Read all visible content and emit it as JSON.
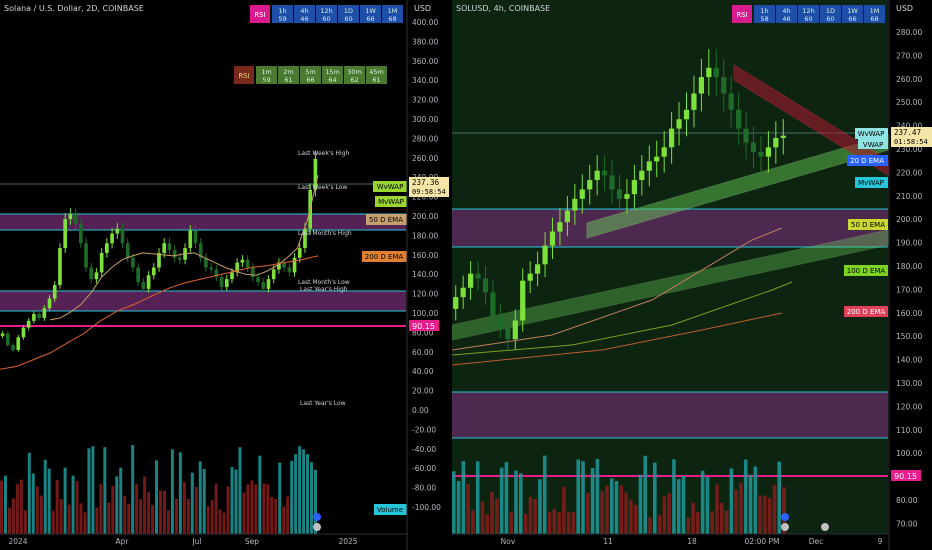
{
  "left": {
    "title": "Solana / U.S. Dollar, 2D, COINBASE",
    "currency": "USD",
    "rsi_label": "RSI",
    "timeframes": [
      {
        "tf": "1h",
        "val": "59"
      },
      {
        "tf": "4h",
        "val": "46"
      },
      {
        "tf": "12h",
        "val": "60"
      },
      {
        "tf": "1D",
        "val": "60"
      },
      {
        "tf": "1W",
        "val": "66"
      },
      {
        "tf": "1M",
        "val": "68"
      }
    ],
    "timeframes2": [
      {
        "tf": "1m",
        "val": "59"
      },
      {
        "tf": "2m",
        "val": "61"
      },
      {
        "tf": "5m",
        "val": "66"
      },
      {
        "tf": "15m",
        "val": "64"
      },
      {
        "tf": "30m",
        "val": "62"
      },
      {
        "tf": "45m",
        "val": "61"
      }
    ],
    "price_ticks": [
      "400.00",
      "380.00",
      "360.00",
      "340.00",
      "320.00",
      "300.00",
      "280.00",
      "260.00",
      "240.00",
      "220.00",
      "200.00",
      "180.00",
      "160.00",
      "140.00",
      "120.00",
      "100.00",
      "80.00",
      "60.00",
      "40.00",
      "20.00",
      "0.00",
      "-20.00",
      "-40.00",
      "-60.00",
      "-80.00",
      "-100.00"
    ],
    "x_ticks": [
      "2024",
      "Apr",
      "Jul",
      "Sep",
      "2025"
    ],
    "levels": {
      "last_week_high": "Last Week's High",
      "last_week_low": "Last Week's Low",
      "last_month_high": "Last Month's High",
      "last_month_low": "Last Month's Low",
      "last_year_high": "Last Year's High",
      "last_year_low": "Last Year's Low"
    },
    "badges": {
      "wvwap": "WvWAP",
      "mvwap": "MvWAP",
      "ema50": "50 D EMA",
      "ema200": "200 D EMA",
      "price": "237.36",
      "countdown": "09:58:54",
      "line_level": "90.15",
      "volume": "Volume"
    },
    "chart_data": {
      "type": "candlestick",
      "title": "Solana / U.S. Dollar, 2D, COINBASE",
      "ylim": [
        -110,
        410
      ],
      "closes": [
        82,
        70,
        65,
        78,
        88,
        95,
        102,
        98,
        108,
        118,
        132,
        170,
        200,
        205,
        195,
        175,
        150,
        138,
        145,
        165,
        175,
        185,
        190,
        175,
        160,
        150,
        135,
        128,
        142,
        150,
        165,
        175,
        168,
        160,
        158,
        170,
        188,
        175,
        160,
        150,
        148,
        140,
        130,
        138,
        145,
        155,
        158,
        150,
        140,
        135,
        128,
        138,
        148,
        155,
        150,
        145,
        160,
        170,
        190,
        230,
        262
      ],
      "ema50": [
        96,
        98,
        104,
        112,
        124,
        140,
        150,
        158,
        162,
        165,
        164,
        163,
        162,
        164,
        165,
        160,
        155,
        150,
        146,
        143,
        142,
        146,
        152,
        160,
        170,
        200,
        245
      ],
      "ema200": [
        45,
        48,
        55,
        62,
        72,
        82,
        95,
        105,
        112,
        120,
        128,
        134,
        138,
        142,
        146,
        150,
        152,
        155,
        158,
        162
      ],
      "vwap_lines": {
        "wvwap": 237.36,
        "mvwap": 215
      },
      "zones": [
        [
          185,
          205
        ],
        [
          108,
          125
        ]
      ],
      "line_level": 90.15
    }
  },
  "right": {
    "title": "SOLUSD, 4h, COINBASE",
    "currency": "USD",
    "rsi_label": "RSI",
    "timeframes": [
      {
        "tf": "1h",
        "val": "58"
      },
      {
        "tf": "4h",
        "val": "46"
      },
      {
        "tf": "12h",
        "val": "60"
      },
      {
        "tf": "1D",
        "val": "60"
      },
      {
        "tf": "1W",
        "val": "66"
      },
      {
        "tf": "1M",
        "val": "68"
      }
    ],
    "price_ticks": [
      "280.00",
      "270.00",
      "260.00",
      "250.00",
      "240.00",
      "230.00",
      "220.00",
      "210.00",
      "200.00",
      "190.00",
      "180.00",
      "170.00",
      "160.00",
      "150.00",
      "140.00",
      "130.00",
      "120.00",
      "110.00",
      "100.00",
      "90.00",
      "80.00",
      "70.00"
    ],
    "x_ticks": [
      "Nov",
      "11",
      "18",
      "02:00 PM",
      "Dec",
      "9"
    ],
    "badges": {
      "wvwap": "WvWAP",
      "vwap": "VWAP",
      "ema20": "20 D EMA",
      "mvwap": "MvWAP",
      "ema50": "50 D EMA",
      "ema100": "100 D EMA",
      "ema200": "200 D EMA",
      "price": "237.47",
      "countdown": "01:58:54",
      "line_level": "90.15"
    },
    "chart_data": {
      "type": "candlestick",
      "title": "SOLUSD, 4h, COINBASE",
      "ylim": [
        65,
        285
      ],
      "closes": [
        168,
        172,
        178,
        176,
        170,
        160,
        155,
        150,
        158,
        175,
        178,
        182,
        190,
        196,
        200,
        205,
        210,
        214,
        218,
        222,
        220,
        214,
        210,
        212,
        218,
        222,
        226,
        228,
        232,
        240,
        244,
        248,
        255,
        262,
        266,
        262,
        255,
        248,
        240,
        234,
        230,
        228,
        232,
        236,
        237
      ],
      "zones": [
        [
          190,
          205
        ],
        [
          105,
          125
        ]
      ],
      "line_level": 90.15,
      "ema_levels": {
        "ema20": 225,
        "ema50": 204,
        "ema100": 186,
        "ema200": 163
      }
    }
  }
}
